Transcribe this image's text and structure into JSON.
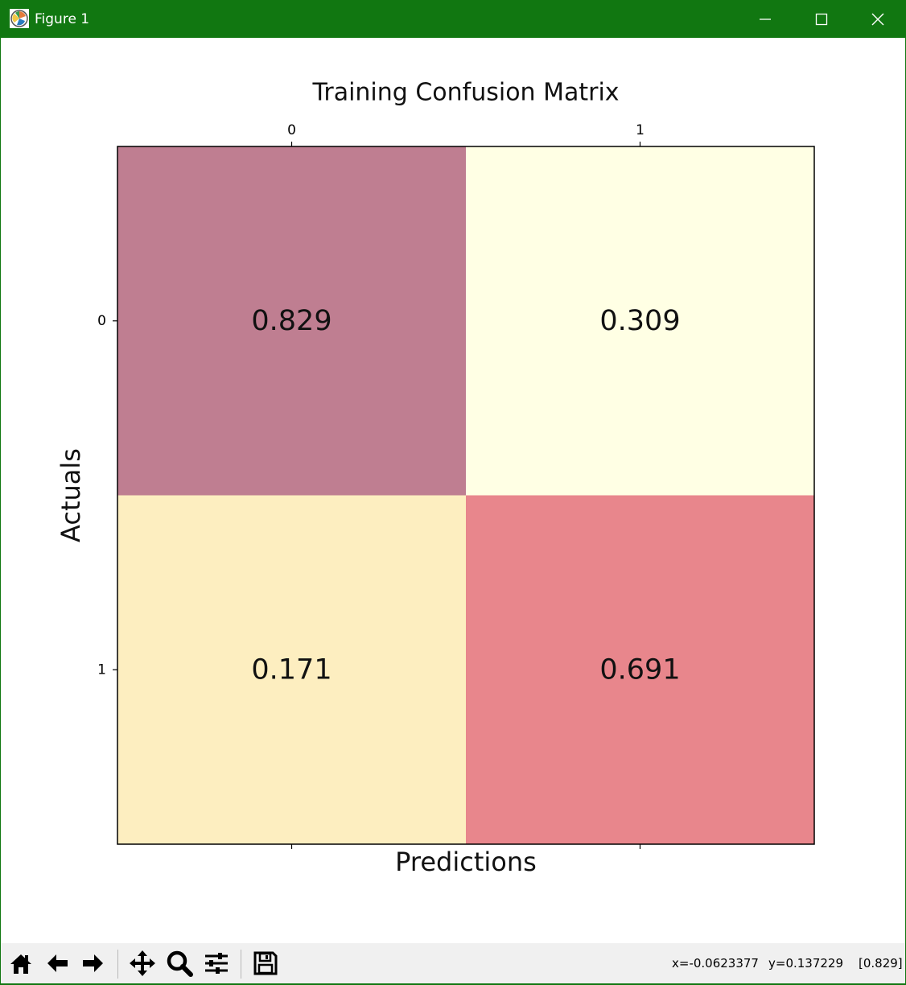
{
  "window": {
    "title": "Figure 1",
    "accent_color": "#117711",
    "app_icon": "matplotlib-icon",
    "controls": [
      "minimize-icon",
      "maximize-icon",
      "close-icon"
    ]
  },
  "chart_data": {
    "type": "heatmap",
    "title": "Training Confusion Matrix",
    "xlabel": "Predictions",
    "ylabel": "Actuals",
    "x_ticks": [
      "0",
      "1"
    ],
    "y_ticks": [
      "0",
      "1"
    ],
    "x_tick_position": "top",
    "values": [
      [
        0.829,
        0.309
      ],
      [
        0.171,
        0.691
      ]
    ],
    "labels": [
      [
        "0.829",
        "0.309"
      ],
      [
        "0.171",
        "0.691"
      ]
    ],
    "cell_colors": [
      [
        "#bf7e91",
        "#ffffe4"
      ],
      [
        "#fdeec0",
        "#e8868c"
      ]
    ],
    "grid": false
  },
  "toolbar": {
    "buttons": [
      "home-icon",
      "back-icon",
      "forward-icon",
      "pan-icon",
      "zoom-icon",
      "configure-subplots-icon",
      "save-icon"
    ],
    "status": {
      "x": "x=-0.0623377",
      "y": "y=0.137229",
      "value": "[0.829]"
    }
  }
}
